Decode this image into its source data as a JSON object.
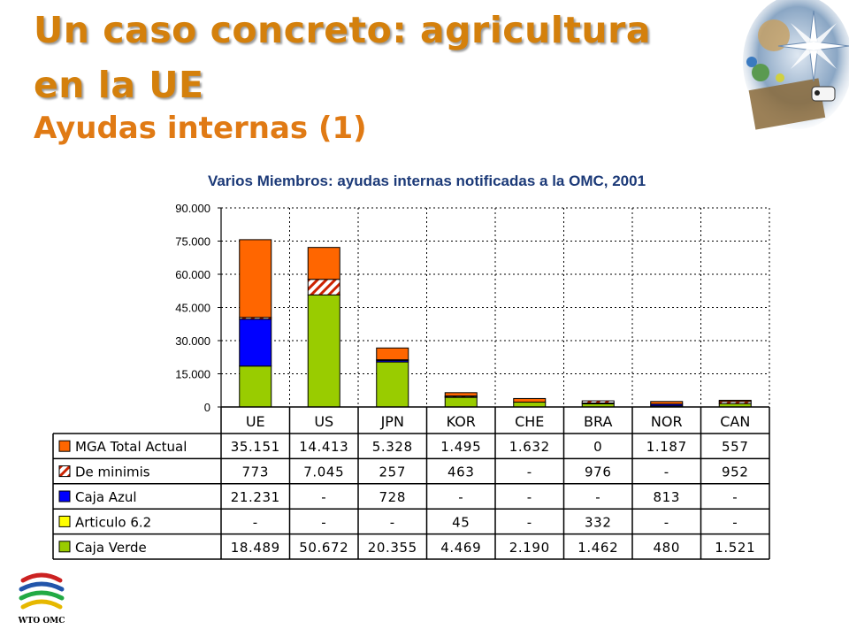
{
  "header": {
    "title_line1": "Un caso concreto: agricultura",
    "title_line2": "en la UE",
    "subtitle": "Ayudas internas (1)"
  },
  "logos": {
    "wto_text": "WTO OMC"
  },
  "chart_data": {
    "type": "bar",
    "stacked": true,
    "title": "Varios Miembros: ayudas internas notificadas a la OMC, 2001",
    "categories": [
      "UE",
      "US",
      "JPN",
      "KOR",
      "CHE",
      "BRA",
      "NOR",
      "CAN"
    ],
    "ylim": [
      0,
      90000
    ],
    "yticks": [
      0,
      15000,
      30000,
      45000,
      60000,
      75000,
      90000
    ],
    "ytick_labels": [
      "0",
      "15.000",
      "30.000",
      "45.000",
      "60.000",
      "75.000",
      "90.000"
    ],
    "grid": true,
    "legend": "table-below",
    "series": [
      {
        "name": "MGA Total Actual",
        "color": "#ff6600",
        "pattern": "solid",
        "values": [
          35151,
          14413,
          5328,
          1495,
          1632,
          0,
          1187,
          557
        ],
        "labels": [
          "35.151",
          "14.413",
          "5.328",
          "1.495",
          "1.632",
          "0",
          "1.187",
          "557"
        ]
      },
      {
        "name": "De minimis",
        "color": "#cc2200",
        "pattern": "hatch",
        "values": [
          773,
          7045,
          257,
          463,
          0,
          976,
          0,
          952
        ],
        "labels": [
          "773",
          "7.045",
          "257",
          "463",
          "-",
          "976",
          "-",
          "952"
        ]
      },
      {
        "name": "Caja Azul",
        "color": "#0000ff",
        "pattern": "solid",
        "values": [
          21231,
          0,
          728,
          0,
          0,
          0,
          813,
          0
        ],
        "labels": [
          "21.231",
          "-",
          "728",
          "-",
          "-",
          "-",
          "813",
          "-"
        ]
      },
      {
        "name": "Articulo 6.2",
        "color": "#ffff00",
        "pattern": "solid",
        "values": [
          0,
          0,
          0,
          45,
          0,
          332,
          0,
          0
        ],
        "labels": [
          "-",
          "-",
          "-",
          "45",
          "-",
          "332",
          "-",
          "-"
        ]
      },
      {
        "name": "Caja Verde",
        "color": "#99cc00",
        "pattern": "solid",
        "values": [
          18489,
          50672,
          20355,
          4469,
          2190,
          1462,
          480,
          1521
        ],
        "labels": [
          "18.489",
          "50.672",
          "20.355",
          "4.469",
          "2.190",
          "1.462",
          "480",
          "1.521"
        ]
      }
    ]
  }
}
